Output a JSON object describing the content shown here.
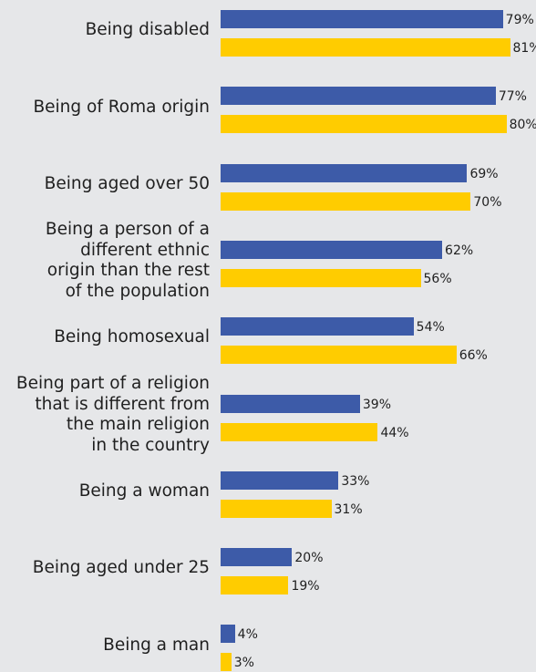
{
  "chart_data": {
    "type": "bar",
    "orientation": "horizontal",
    "categories": [
      "Being disabled",
      "Being of Roma origin",
      "Being aged over 50",
      "Being a person of a\ndifferent ethnic\norigin than the rest\nof the population",
      "Being homosexual",
      "Being part of a religion\nthat is different from\nthe main religion\nin the country",
      "Being a woman",
      "Being aged under 25",
      "Being a man"
    ],
    "series": [
      {
        "color": "#3d5ba8",
        "values": [
          79,
          77,
          69,
          62,
          54,
          39,
          33,
          20,
          4
        ]
      },
      {
        "color": "#ffcc00",
        "values": [
          81,
          80,
          70,
          56,
          66,
          44,
          31,
          19,
          3
        ]
      }
    ],
    "value_suffix": "%",
    "xlim": [
      0,
      100
    ],
    "grid": false,
    "legend": "none"
  }
}
